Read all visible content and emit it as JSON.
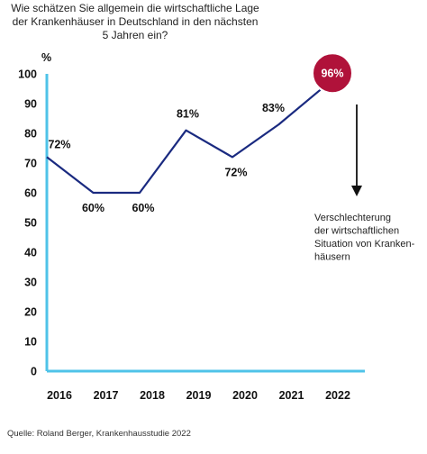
{
  "chart_data": {
    "type": "line",
    "title": "Wie schätzen Sie allgemein die wirtschaftliche Lage\nder Krankenhäuser in Deutschland in den nächsten\n5 Jahren ein?",
    "y_unit": "%",
    "x": [
      "2016",
      "2017",
      "2018",
      "2019",
      "2020",
      "2021",
      "2022"
    ],
    "series": [
      {
        "values": [
          72,
          60,
          60,
          81,
          72,
          83,
          96
        ]
      }
    ],
    "data_labels": [
      "72%",
      "60%",
      "60%",
      "81%",
      "72%",
      "83%",
      "96%"
    ],
    "y_ticks": [
      0,
      10,
      20,
      30,
      40,
      50,
      60,
      70,
      80,
      90,
      100
    ],
    "ylim": [
      0,
      100
    ],
    "grid": false,
    "line_color": "#1a2a80",
    "highlight_color": "#b0123a",
    "annotation": [
      "Verschlechterung",
      "der wirtschaftlichen",
      "Situation von Kranken-",
      "häusern"
    ]
  },
  "source": "Quelle: Roland Berger, Krankenhausstudie 2022"
}
